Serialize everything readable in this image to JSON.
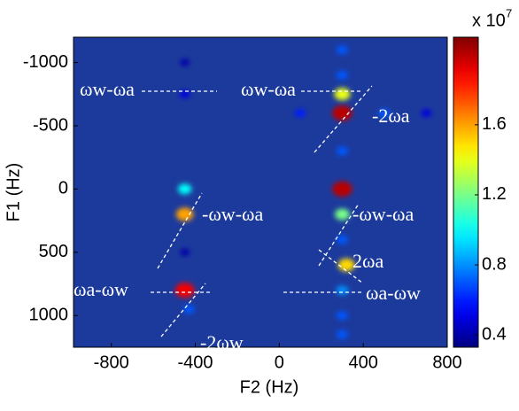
{
  "chart_data": {
    "type": "spectrum2d",
    "xlabel": "F2 (Hz)",
    "ylabel": "F1 (Hz)",
    "xlim": [
      -980,
      800
    ],
    "ylim": [
      -1200,
      1250
    ],
    "y_inverted": true,
    "xticks": [
      -800,
      -400,
      0,
      400,
      800
    ],
    "yticks": [
      -1000,
      -500,
      0,
      500,
      1000
    ],
    "colormap": "jet",
    "clim": [
      0.33,
      2.1
    ],
    "cticks": [
      0.4,
      0.8,
      1.2,
      1.6
    ],
    "colorbar_label": "x 10",
    "colorbar_exponent": 7,
    "x": [
      300,
      300,
      300,
      300,
      320,
      300,
      -450,
      -450,
      -450,
      -450,
      -430,
      300,
      300,
      300,
      300,
      300,
      300,
      -450,
      -450,
      100,
      500,
      700
    ],
    "y": [
      -600,
      -750,
      0,
      200,
      600,
      800,
      -750,
      0,
      200,
      800,
      950,
      -1100,
      -900,
      -300,
      400,
      1000,
      1150,
      -1000,
      500,
      -600,
      -600,
      -600
    ],
    "values": [
      2.0,
      1.4,
      2.0,
      1.2,
      1.5,
      0.8,
      0.5,
      1.0,
      1.6,
      1.9,
      0.7,
      0.7,
      0.7,
      0.7,
      0.7,
      0.7,
      0.7,
      0.4,
      0.4,
      0.6,
      0.7,
      0.5
    ],
    "annotations": [
      "ωw-ωa",
      "ωw-ωa",
      "-2ωa",
      "-ωw-ωa",
      "-ωw-ωa",
      "2ωa",
      "ωa-ωw",
      "ωa-ωw",
      "-2ωw"
    ]
  }
}
